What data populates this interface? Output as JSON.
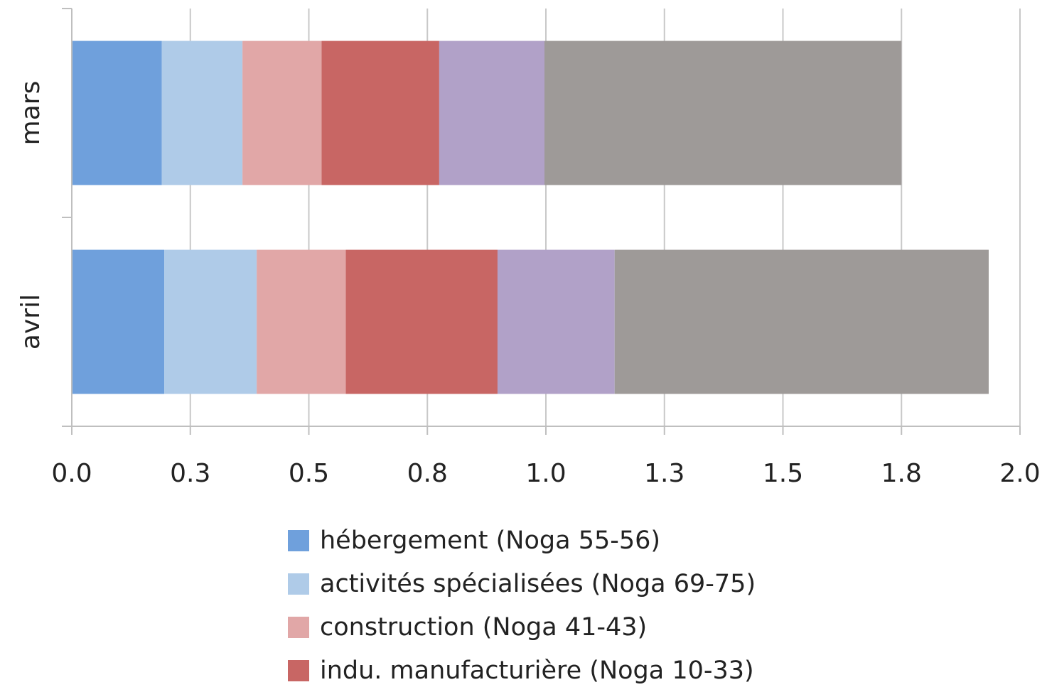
{
  "chart_data": {
    "type": "bar",
    "orientation": "horizontal",
    "stacked": true,
    "categories": [
      "mars",
      "avril"
    ],
    "series": [
      {
        "name": "hébergement (Noga 55-56)",
        "color": "#6fa0dc",
        "values": [
          0.19,
          0.195
        ]
      },
      {
        "name": "activités spécialisées (Noga 69-75)",
        "color": "#afcbe8",
        "values": [
          0.17,
          0.195
        ]
      },
      {
        "name": "construction (Noga 41-43)",
        "color": "#e1a7a7",
        "values": [
          0.167,
          0.188
        ]
      },
      {
        "name": "indu. manufacturière (Noga 10-33)",
        "color": "#c86664",
        "values": [
          0.248,
          0.32
        ]
      },
      {
        "name": "",
        "color": "#b1a1c8",
        "values": [
          0.222,
          0.247
        ]
      },
      {
        "name": "",
        "color": "#9e9a98",
        "values": [
          0.753,
          0.789
        ]
      }
    ],
    "xlim": [
      0,
      2.0
    ],
    "x_ticks": [
      0.0,
      0.25,
      0.5,
      0.75,
      1.0,
      1.25,
      1.5,
      1.75,
      2.0
    ],
    "x_tick_labels": [
      "0.0",
      "0.3",
      "0.5",
      "0.8",
      "1.0",
      "1.3",
      "1.5",
      "1.8",
      "2.0"
    ],
    "title": "",
    "xlabel": "",
    "ylabel": "",
    "grid": true,
    "legend_position": "bottom"
  }
}
